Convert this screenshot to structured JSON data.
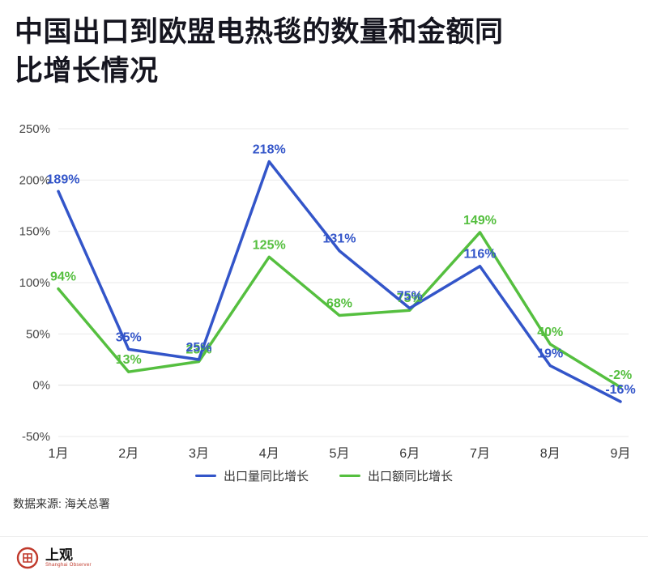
{
  "title": "中国出口到欧盟电热毯的数量和金额同比增长情况",
  "chart_data": {
    "type": "line",
    "title": "中国出口到欧盟电热毯的数量和金额同比增长情况",
    "categories": [
      "1月",
      "2月",
      "3月",
      "4月",
      "5月",
      "6月",
      "7月",
      "8月",
      "9月"
    ],
    "series": [
      {
        "name": "出口量同比增长",
        "color": "#3355c9",
        "values": [
          189,
          35,
          25,
          218,
          131,
          75,
          116,
          19,
          -16
        ]
      },
      {
        "name": "出口额同比增长",
        "color": "#55bf3f",
        "values": [
          94,
          13,
          23,
          125,
          68,
          73,
          149,
          40,
          -2
        ]
      }
    ],
    "xlabel": "",
    "ylabel": "",
    "ylim": [
      -50,
      250
    ],
    "ytick_step": 50,
    "ytick_suffix": "%",
    "grid": true,
    "legend_position": "bottom"
  },
  "source": {
    "label": "数据来源: 海关总署"
  },
  "footer": {
    "logo_text": "上观",
    "logo_subtext": "Shanghai Observer"
  },
  "colors": {
    "series_quantity": "#3355c9",
    "series_amount": "#55bf3f",
    "title_text": "#15151f",
    "logo_red": "#c0392b"
  }
}
